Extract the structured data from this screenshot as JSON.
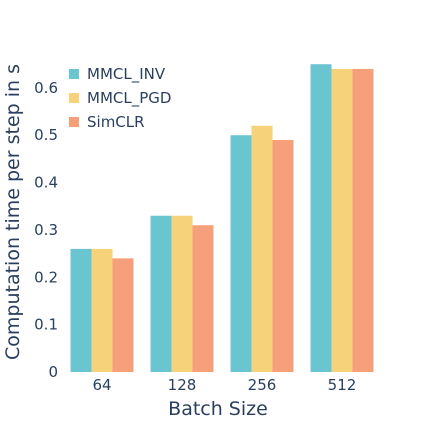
{
  "chart_data": {
    "type": "bar",
    "categories": [
      "64",
      "128",
      "256",
      "512"
    ],
    "series": [
      {
        "name": "MMCL_INV",
        "values": [
          0.26,
          0.33,
          0.5,
          0.65
        ],
        "color": "#6ac5d1"
      },
      {
        "name": "MMCL_PGD",
        "values": [
          0.26,
          0.33,
          0.52,
          0.64
        ],
        "color": "#f6d27b"
      },
      {
        "name": "SimCLR",
        "values": [
          0.24,
          0.31,
          0.49,
          0.64
        ],
        "color": "#f5a07a"
      }
    ],
    "xlabel": "Batch Size",
    "ylabel": "Computation time per step in s",
    "ylim": [
      0,
      0.68
    ],
    "yticks": [
      "0",
      "0.1",
      "0.2",
      "0.3",
      "0.4",
      "0.5",
      "0.6"
    ],
    "grid": false,
    "legend_position": "top-left"
  }
}
